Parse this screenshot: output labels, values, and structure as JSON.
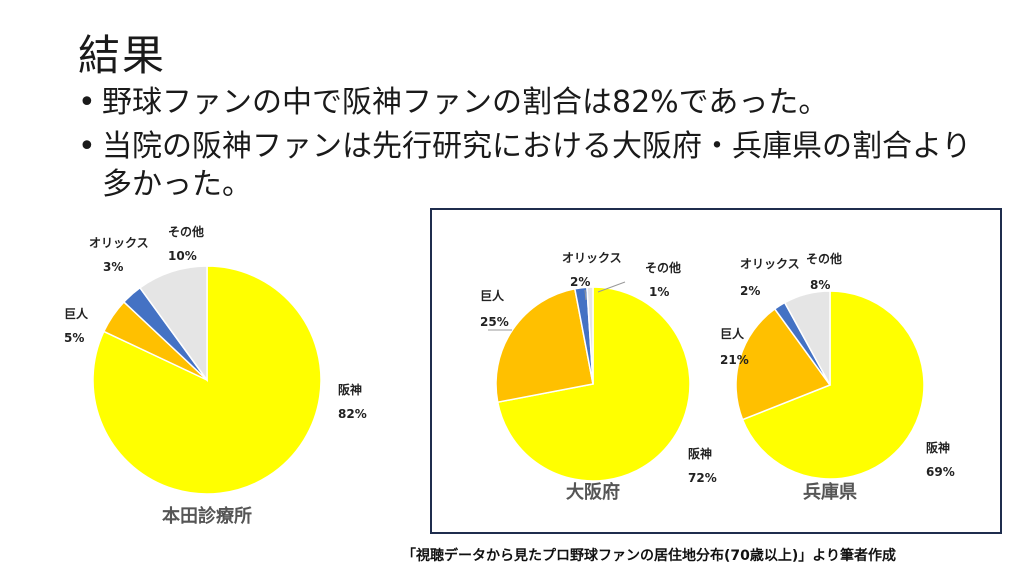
{
  "slide": {
    "title": "結果",
    "bullets": [
      "野球ファンの中で阪神ファンの割合は82%であった。",
      "当院の阪神ファンは先行研究における大阪府・兵庫県の割合より多かった。"
    ],
    "source_note": "「視聴データから見たプロ野球ファンの居住地分布(70歳以上)」より筆者作成"
  },
  "colors": {
    "阪神": "#ffff00",
    "巨人": "#ffc000",
    "オリックス": "#4472c4",
    "その他": "#e5e5e5",
    "frame_border": "#1f2d4d"
  },
  "chart_data": [
    {
      "type": "pie",
      "caption": "本田診療所",
      "categories": [
        "阪神",
        "巨人",
        "オリックス",
        "その他"
      ],
      "values": [
        82,
        5,
        3,
        10
      ],
      "labels": [
        "阪神",
        "巨人",
        "オリックス",
        "その他"
      ],
      "value_labels": [
        "82%",
        "5%",
        "3%",
        "10%"
      ]
    },
    {
      "type": "pie",
      "caption": "大阪府",
      "categories": [
        "阪神",
        "巨人",
        "オリックス",
        "その他"
      ],
      "values": [
        72,
        25,
        2,
        1
      ],
      "labels": [
        "阪神",
        "巨人",
        "オリックス",
        "その他"
      ],
      "value_labels": [
        "72%",
        "25%",
        "2%",
        "1%"
      ]
    },
    {
      "type": "pie",
      "caption": "兵庫県",
      "categories": [
        "阪神",
        "巨人",
        "オリックス",
        "その他"
      ],
      "values": [
        69,
        21,
        2,
        8
      ],
      "labels": [
        "阪神",
        "巨人",
        "オリックス",
        "その他"
      ],
      "value_labels": [
        "69%",
        "21%",
        "2%",
        "8%"
      ]
    }
  ]
}
